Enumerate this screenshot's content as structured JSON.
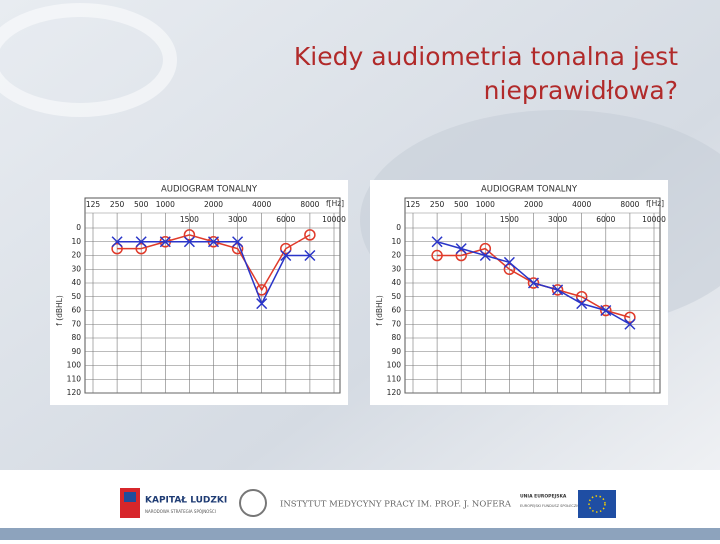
{
  "title": "Kiedy audiometria tonalna jest nieprawidłowa?",
  "footer": {
    "logo1": "KAPITAŁ LUDZKI",
    "logo1_sub": "NARODOWA STRATEGIA SPÓJNOŚCI",
    "logo2": "INSTYTUT MEDYCYNY PRACY IM. PROF. J. NOFERA",
    "logo3": "UNIA EUROPEJSKA",
    "logo3_sub": "EUROPEJSKI FUNDUSZ SPOŁECZNY"
  },
  "chart_data": [
    {
      "type": "line",
      "title": "AUDIOGRAM TONALNY",
      "x_label": "f[Hz]",
      "y_label": "f (dBHL)",
      "categories": [
        "125",
        "250",
        "500",
        "1000",
        "1500",
        "2000",
        "3000",
        "4000",
        "6000",
        "8000",
        "10000"
      ],
      "ylim": [
        0,
        120
      ],
      "yticks": [
        0,
        10,
        20,
        30,
        40,
        50,
        60,
        70,
        80,
        90,
        100,
        110,
        120
      ],
      "y_inverted": true,
      "grid": true,
      "series": [
        {
          "name": "Right",
          "color": "#e03a2a",
          "marker": "circle",
          "values": [
            null,
            15,
            15,
            10,
            5,
            10,
            15,
            45,
            15,
            5,
            null
          ]
        },
        {
          "name": "Left",
          "color": "#2a35c8",
          "marker": "cross",
          "values": [
            null,
            10,
            10,
            10,
            10,
            10,
            10,
            55,
            20,
            20,
            null
          ]
        }
      ]
    },
    {
      "type": "line",
      "title": "AUDIOGRAM TONALNY",
      "x_label": "f[Hz]",
      "y_label": "f (dBHL)",
      "categories": [
        "125",
        "250",
        "500",
        "1000",
        "1500",
        "2000",
        "3000",
        "4000",
        "6000",
        "8000",
        "10000"
      ],
      "ylim": [
        0,
        120
      ],
      "yticks": [
        0,
        10,
        20,
        30,
        40,
        50,
        60,
        70,
        80,
        90,
        100,
        110,
        120
      ],
      "y_inverted": true,
      "grid": true,
      "series": [
        {
          "name": "Right",
          "color": "#e03a2a",
          "marker": "circle",
          "values": [
            null,
            20,
            20,
            15,
            30,
            40,
            45,
            50,
            60,
            65,
            null
          ]
        },
        {
          "name": "Left",
          "color": "#2a35c8",
          "marker": "cross",
          "values": [
            null,
            10,
            15,
            20,
            25,
            40,
            45,
            55,
            60,
            70,
            null
          ]
        }
      ]
    }
  ]
}
